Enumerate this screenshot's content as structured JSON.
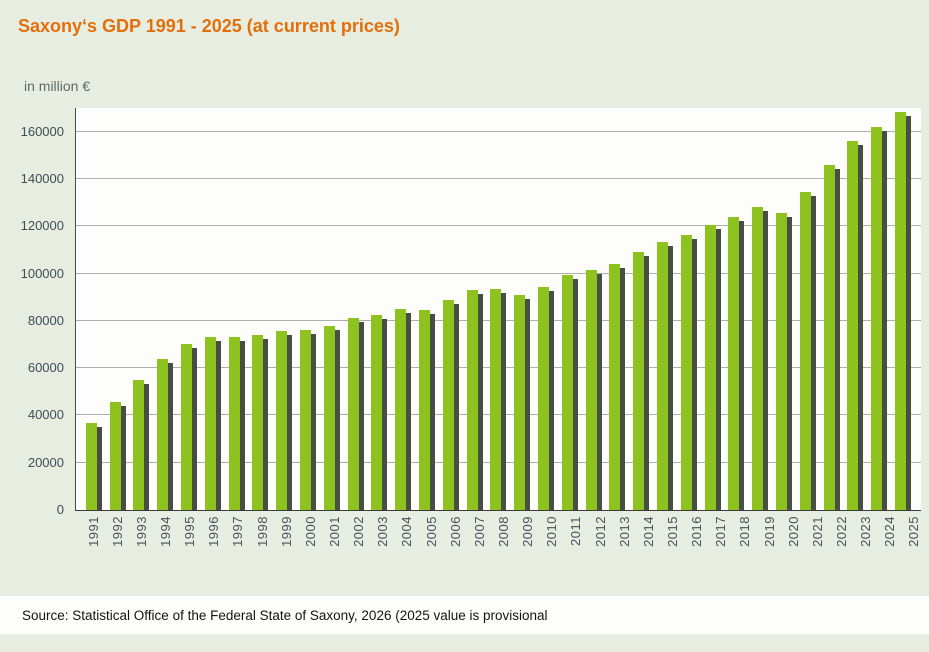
{
  "title": "Saxony‘s GDP 1991 - 2025 (at current prices)",
  "unit_label": "in million €",
  "source": "Source: Statistical Office of the Federal State of Saxony, 2026 (2025 value is provisional",
  "colors": {
    "background": "#e8ede2",
    "title": "#e36f0a",
    "bar": "#8ec31f",
    "bar_shadow": "#474f44",
    "grid": "#aab2aa",
    "axis_text": "#3f4d55",
    "plot_background": "#fdfdfb"
  },
  "chart_data": {
    "type": "bar",
    "title": "Saxony‘s GDP 1991 - 2025 (at current prices)",
    "xlabel": "",
    "ylabel": "in million €",
    "ylim": [
      0,
      170000
    ],
    "yticks": [
      0,
      20000,
      40000,
      60000,
      80000,
      100000,
      120000,
      140000,
      160000
    ],
    "grid": true,
    "legend": "none",
    "categories": [
      "1991",
      "1992",
      "1993",
      "1994",
      "1995",
      "1996",
      "1997",
      "1998",
      "1999",
      "2000",
      "2001",
      "2002",
      "2003",
      "2004",
      "2005",
      "2006",
      "2007",
      "2008",
      "2009",
      "2010",
      "2011",
      "2012",
      "2013",
      "2014",
      "2015",
      "2016",
      "2017",
      "2018",
      "2019",
      "2020",
      "2021",
      "2022",
      "2023",
      "2024",
      "2025"
    ],
    "values": [
      37000,
      45500,
      55000,
      64000,
      70000,
      73000,
      73000,
      74000,
      75500,
      76000,
      78000,
      81000,
      82500,
      85000,
      84500,
      89000,
      93000,
      93500,
      91000,
      94500,
      99500,
      101500,
      104000,
      109000,
      113500,
      116500,
      120500,
      124000,
      128000,
      125500,
      134500,
      146000,
      156000,
      162000,
      168500
    ]
  }
}
